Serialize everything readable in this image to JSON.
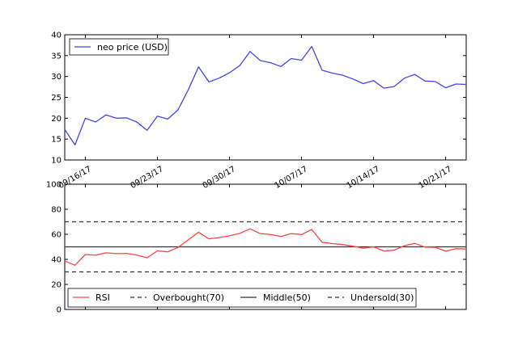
{
  "chart_data": [
    {
      "type": "line",
      "x_dates": [
        "09/14/17",
        "09/15/17",
        "09/16/17",
        "09/17/17",
        "09/18/17",
        "09/19/17",
        "09/20/17",
        "09/21/17",
        "09/22/17",
        "09/23/17",
        "09/24/17",
        "09/25/17",
        "09/26/17",
        "09/27/17",
        "09/28/17",
        "09/29/17",
        "09/30/17",
        "10/01/17",
        "10/02/17",
        "10/03/17",
        "10/04/17",
        "10/05/17",
        "10/06/17",
        "10/07/17",
        "10/08/17",
        "10/09/17",
        "10/10/17",
        "10/11/17",
        "10/12/17",
        "10/13/17",
        "10/14/17",
        "10/15/17",
        "10/16/17",
        "10/17/17",
        "10/18/17",
        "10/19/17",
        "10/20/17",
        "10/21/17",
        "10/22/17",
        "10/23/17"
      ],
      "series": [
        {
          "name": "neo price (USD)",
          "color": "#4444ee",
          "values": [
            17.3,
            13.6,
            20.0,
            19.1,
            20.8,
            20.0,
            20.1,
            19.1,
            17.1,
            20.5,
            19.8,
            22.0,
            26.8,
            32.3,
            28.7,
            29.6,
            30.9,
            32.6,
            36.0,
            33.8,
            33.3,
            32.4,
            34.3,
            33.9,
            37.2,
            31.5,
            30.8,
            30.3,
            29.4,
            28.3,
            29.0,
            27.2,
            27.6,
            29.6,
            30.5,
            28.9,
            28.8,
            27.3,
            28.2,
            28.1
          ]
        }
      ],
      "ylim": [
        10,
        40
      ],
      "yticks": [
        "10",
        "15",
        "20",
        "25",
        "30",
        "35",
        "40"
      ],
      "xticks": [
        "09/16/17",
        "09/23/17",
        "09/30/17",
        "10/07/17",
        "10/14/17",
        "10/21/17"
      ],
      "grid": false,
      "legend": "top-left"
    },
    {
      "type": "line",
      "x_dates": [
        "09/14/17",
        "09/15/17",
        "09/16/17",
        "09/17/17",
        "09/18/17",
        "09/19/17",
        "09/20/17",
        "09/21/17",
        "09/22/17",
        "09/23/17",
        "09/24/17",
        "09/25/17",
        "09/26/17",
        "09/27/17",
        "09/28/17",
        "09/29/17",
        "09/30/17",
        "10/01/17",
        "10/02/17",
        "10/03/17",
        "10/04/17",
        "10/05/17",
        "10/06/17",
        "10/07/17",
        "10/08/17",
        "10/09/17",
        "10/10/17",
        "10/11/17",
        "10/12/17",
        "10/13/17",
        "10/14/17",
        "10/15/17",
        "10/16/17",
        "10/17/17",
        "10/18/17",
        "10/19/17",
        "10/20/17",
        "10/21/17",
        "10/22/17",
        "10/23/17"
      ],
      "series": [
        {
          "name": "RSI",
          "color": "#ff4444",
          "values": [
            38.6,
            35.3,
            43.9,
            43.3,
            45.2,
            44.6,
            44.8,
            43.5,
            41.2,
            46.8,
            46.0,
            49.5,
            55.5,
            61.7,
            56.4,
            57.4,
            58.8,
            60.7,
            64.4,
            60.6,
            59.9,
            58.2,
            60.6,
            59.8,
            63.9,
            53.7,
            52.6,
            51.8,
            50.5,
            48.9,
            50.0,
            46.7,
            47.3,
            50.9,
            52.8,
            49.8,
            49.6,
            46.5,
            48.6,
            48.3
          ]
        }
      ],
      "reference_lines": [
        {
          "name": "Overbought(70)",
          "value": 70,
          "style": "dashed",
          "color": "#333333"
        },
        {
          "name": "Middle(50)",
          "value": 50,
          "style": "solid",
          "color": "#333333"
        },
        {
          "name": "Undersold(30)",
          "value": 30,
          "style": "dashed",
          "color": "#333333"
        }
      ],
      "ylim": [
        0,
        100
      ],
      "yticks": [
        "0",
        "20",
        "40",
        "60",
        "80",
        "100"
      ],
      "grid": false,
      "legend": "bottom, single row"
    }
  ]
}
